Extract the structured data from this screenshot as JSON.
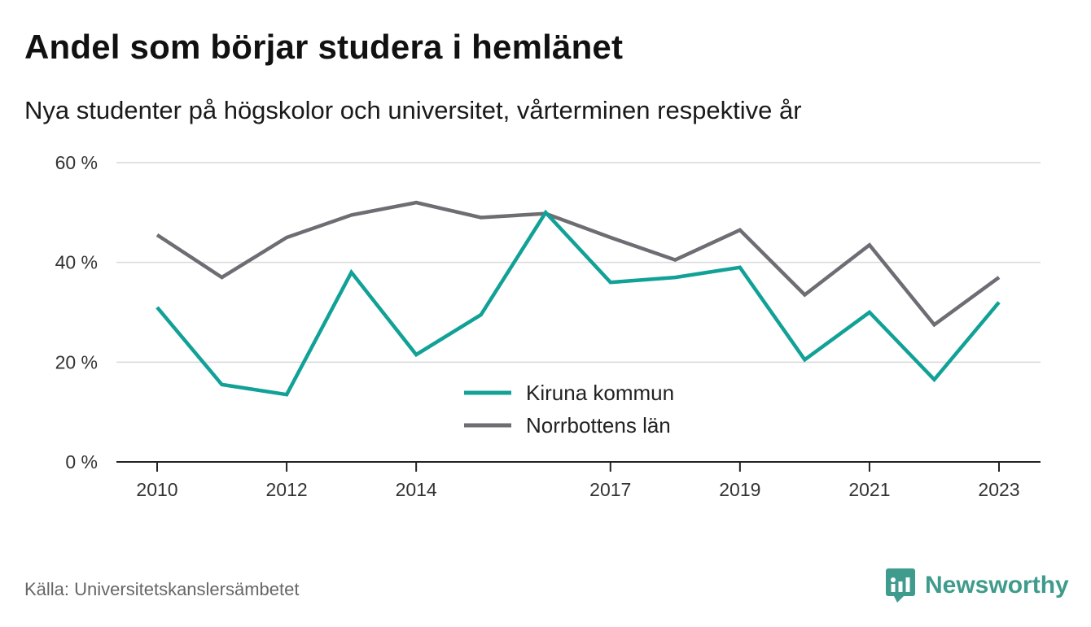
{
  "title": "Andel som börjar studera i hemlänet",
  "subtitle": "Nya studenter på högskolor och universitet, vårterminen respektive år",
  "source": "Källa: Universitetskanslersämbetet",
  "brand": {
    "name": "Newsworthy",
    "icon": "newsworthy-logo-icon",
    "color": "#3f9b8c"
  },
  "chart_data": {
    "type": "line",
    "x": [
      2010,
      2011,
      2012,
      2013,
      2014,
      2015,
      2016,
      2017,
      2018,
      2019,
      2020,
      2021,
      2022,
      2023
    ],
    "x_tick_labels": [
      "2010",
      "2012",
      "2014",
      "2017",
      "2019",
      "2021",
      "2023"
    ],
    "y_ticks": [
      0,
      20,
      40,
      60
    ],
    "y_tick_labels": [
      "0 %",
      "20 %",
      "40 %",
      "60 %"
    ],
    "ylim": [
      0,
      60
    ],
    "grid": true,
    "legend_position": "center-bottom",
    "series": [
      {
        "name": "Kiruna kommun",
        "color": "#11a196",
        "values": [
          31,
          15.5,
          13.5,
          38,
          21.5,
          29.5,
          50,
          36,
          37,
          39,
          20.5,
          30,
          16.5,
          32
        ]
      },
      {
        "name": "Norrbottens län",
        "color": "#6e6d73",
        "values": [
          45.5,
          37,
          45,
          49.5,
          52,
          49,
          49.8,
          45,
          40.5,
          46.5,
          33.5,
          43.5,
          27.5,
          37
        ]
      }
    ]
  }
}
